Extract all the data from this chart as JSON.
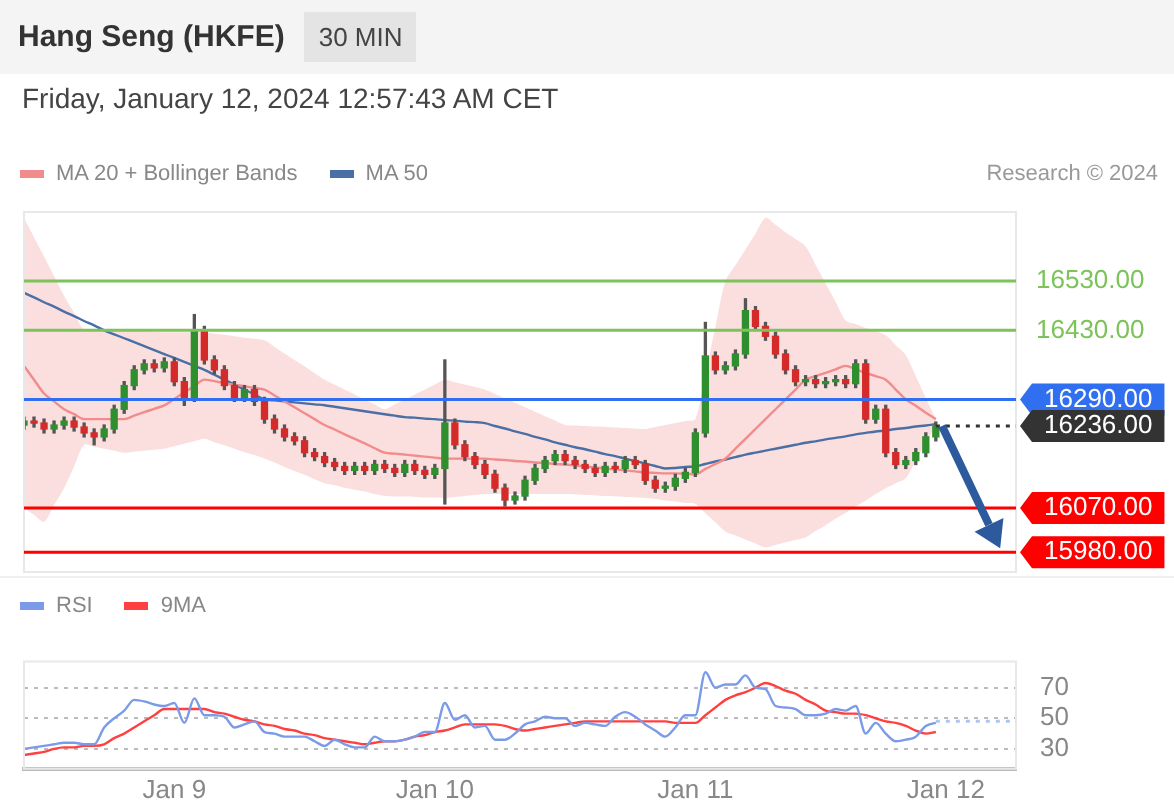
{
  "chart_data": [
    {
      "type": "candlestick",
      "title": "Hang Seng (HKFE)",
      "subtitle": "30 MIN",
      "annotations": [
        "Friday, January 12, 2024 12:57:43 AM CET",
        "Research © 2024"
      ],
      "ohlc": [
        [
          16238,
          16254,
          16230,
          16246
        ],
        [
          16246,
          16254,
          16234,
          16242
        ],
        [
          16242,
          16250,
          16222,
          16230
        ],
        [
          16230,
          16246,
          16222,
          16238
        ],
        [
          16238,
          16254,
          16230,
          16246
        ],
        [
          16246,
          16254,
          16226,
          16234
        ],
        [
          16234,
          16242,
          16214,
          16222
        ],
        [
          16222,
          16230,
          16198,
          16214
        ],
        [
          16214,
          16238,
          16206,
          16230
        ],
        [
          16230,
          16278,
          16222,
          16270
        ],
        [
          16270,
          16326,
          16262,
          16318
        ],
        [
          16318,
          16358,
          16310,
          16350
        ],
        [
          16350,
          16370,
          16342,
          16362
        ],
        [
          16362,
          16370,
          16346,
          16354
        ],
        [
          16354,
          16374,
          16346,
          16366
        ],
        [
          16366,
          16374,
          16318,
          16326
        ],
        [
          16326,
          16334,
          16278,
          16294
        ],
        [
          16294,
          16462,
          16286,
          16430
        ],
        [
          16430,
          16438,
          16362,
          16370
        ],
        [
          16370,
          16378,
          16342,
          16350
        ],
        [
          16350,
          16358,
          16310,
          16318
        ],
        [
          16318,
          16326,
          16286,
          16294
        ],
        [
          16294,
          16318,
          16286,
          16310
        ],
        [
          16310,
          16318,
          16278,
          16286
        ],
        [
          16286,
          16294,
          16242,
          16250
        ],
        [
          16250,
          16258,
          16222,
          16230
        ],
        [
          16230,
          16238,
          16206,
          16214
        ],
        [
          16214,
          16222,
          16198,
          16206
        ],
        [
          16206,
          16214,
          16174,
          16182
        ],
        [
          16182,
          16190,
          16166,
          16174
        ],
        [
          16174,
          16182,
          16154,
          16162
        ],
        [
          16162,
          16170,
          16146,
          16154
        ],
        [
          16154,
          16162,
          16138,
          16146
        ],
        [
          16146,
          16162,
          16138,
          16154
        ],
        [
          16154,
          16162,
          16138,
          16146
        ],
        [
          16146,
          16166,
          16138,
          16158
        ],
        [
          16158,
          16166,
          16142,
          16150
        ],
        [
          16150,
          16158,
          16134,
          16142
        ],
        [
          16142,
          16166,
          16134,
          16158
        ],
        [
          16158,
          16166,
          16138,
          16146
        ],
        [
          16146,
          16154,
          16130,
          16138
        ],
        [
          16138,
          16158,
          16130,
          16150
        ],
        [
          16150,
          16370,
          16078,
          16242
        ],
        [
          16242,
          16250,
          16190,
          16198
        ],
        [
          16198,
          16206,
          16166,
          16174
        ],
        [
          16174,
          16182,
          16150,
          16158
        ],
        [
          16158,
          16166,
          16130,
          16138
        ],
        [
          16138,
          16146,
          16102,
          16110
        ],
        [
          16110,
          16118,
          16074,
          16086
        ],
        [
          16086,
          16102,
          16078,
          16094
        ],
        [
          16094,
          16134,
          16086,
          16126
        ],
        [
          16126,
          16158,
          16118,
          16150
        ],
        [
          16150,
          16174,
          16142,
          16166
        ],
        [
          16166,
          16186,
          16158,
          16178
        ],
        [
          16178,
          16186,
          16158,
          16166
        ],
        [
          16166,
          16174,
          16150,
          16158
        ],
        [
          16158,
          16166,
          16142,
          16150
        ],
        [
          16150,
          16158,
          16134,
          16142
        ],
        [
          16142,
          16162,
          16134,
          16154
        ],
        [
          16154,
          16162,
          16142,
          16150
        ],
        [
          16150,
          16174,
          16142,
          16166
        ],
        [
          16166,
          16174,
          16150,
          16158
        ],
        [
          16158,
          16166,
          16118,
          16126
        ],
        [
          16126,
          16134,
          16102,
          16110
        ],
        [
          16110,
          16122,
          16102,
          16114
        ],
        [
          16114,
          16138,
          16106,
          16130
        ],
        [
          16130,
          16150,
          16122,
          16142
        ],
        [
          16142,
          16230,
          16134,
          16222
        ],
        [
          16222,
          16446,
          16214,
          16378
        ],
        [
          16378,
          16386,
          16342,
          16350
        ],
        [
          16350,
          16366,
          16342,
          16358
        ],
        [
          16358,
          16390,
          16350,
          16382
        ],
        [
          16382,
          16494,
          16374,
          16470
        ],
        [
          16470,
          16478,
          16430,
          16438
        ],
        [
          16438,
          16446,
          16410,
          16418
        ],
        [
          16418,
          16426,
          16374,
          16382
        ],
        [
          16382,
          16390,
          16342,
          16350
        ],
        [
          16350,
          16358,
          16318,
          16326
        ],
        [
          16326,
          16338,
          16318,
          16330
        ],
        [
          16330,
          16338,
          16314,
          16322
        ],
        [
          16322,
          16334,
          16314,
          16326
        ],
        [
          16326,
          16338,
          16318,
          16330
        ],
        [
          16330,
          16338,
          16314,
          16322
        ],
        [
          16322,
          16370,
          16314,
          16362
        ],
        [
          16362,
          16370,
          16242,
          16250
        ],
        [
          16250,
          16278,
          16242,
          16270
        ],
        [
          16270,
          16278,
          16174,
          16182
        ],
        [
          16182,
          16190,
          16150,
          16158
        ],
        [
          16158,
          16174,
          16150,
          16166
        ],
        [
          16166,
          16190,
          16158,
          16182
        ],
        [
          16182,
          16222,
          16174,
          16214
        ],
        [
          16214,
          16244,
          16206,
          16236
        ],
        null,
        null,
        null,
        null,
        null,
        null,
        null,
        null
      ],
      "series": [
        {
          "type": "line",
          "name": "MA 20 + Bollinger Bands",
          "color": "#f28b8b",
          "values": [
            16358,
            16330,
            16302,
            16286,
            16270,
            16260,
            16250,
            16250,
            16250,
            16250,
            16250,
            16257,
            16264,
            16271,
            16278,
            16291,
            16304,
            16317,
            16330,
            16327,
            16323,
            16320,
            16317,
            16313,
            16310,
            16298,
            16286,
            16274,
            16262,
            16250,
            16238,
            16229,
            16219,
            16210,
            16201,
            16191,
            16182,
            16180,
            16178,
            16176,
            16174,
            16172,
            16170,
            16170,
            16170,
            16170,
            16170,
            16168,
            16167,
            16165,
            16164,
            16162,
            16161,
            16159,
            16158,
            16156,
            16154,
            16152,
            16150,
            16148,
            16146,
            16144,
            16142,
            16141,
            16140,
            16140,
            16139,
            16138,
            16149,
            16159,
            16170,
            16190,
            16210,
            16230,
            16250,
            16270,
            16290,
            16310,
            16330,
            16337,
            16344,
            16351,
            16358,
            16351,
            16344,
            16337,
            16330,
            16310,
            16290,
            16277,
            16263,
            16250,
            null,
            null,
            null,
            null,
            null,
            null,
            null,
            null
          ],
          "upper": [
            16658,
            16619,
            16580,
            16540,
            16500,
            16465,
            16430,
            16430,
            16430,
            16430,
            16430,
            16429,
            16428,
            16427,
            16426,
            16426,
            16426,
            16426,
            16426,
            16423,
            16421,
            16418,
            16415,
            16413,
            16410,
            16397,
            16383,
            16370,
            16357,
            16343,
            16330,
            16320,
            16310,
            16300,
            16290,
            16280,
            16270,
            16280,
            16290,
            16300,
            16310,
            16320,
            16330,
            16325,
            16320,
            16315,
            16310,
            16301,
            16292,
            16283,
            16274,
            16265,
            16256,
            16247,
            16238,
            16237,
            16236,
            16235,
            16234,
            16233,
            16232,
            16231,
            16230,
            16234,
            16238,
            16242,
            16246,
            16250,
            16343,
            16437,
            16530,
            16562,
            16594,
            16626,
            16658,
            16644,
            16629,
            16615,
            16600,
            16563,
            16525,
            16488,
            16450,
            16443,
            16435,
            16428,
            16420,
            16400,
            16380,
            16337,
            16293,
            16250,
            null,
            null,
            null,
            null,
            null,
            null,
            null,
            null
          ],
          "lower": [
            16070,
            16056,
            16042,
            16076,
            16110,
            16154,
            16198,
            16194,
            16190,
            16186,
            16182,
            16184,
            16186,
            16188,
            16190,
            16195,
            16200,
            16205,
            16210,
            16203,
            16197,
            16190,
            16183,
            16177,
            16170,
            16162,
            16153,
            16145,
            16137,
            16128,
            16120,
            16116,
            16111,
            16107,
            16103,
            16098,
            16094,
            16093,
            16093,
            16092,
            16091,
            16091,
            16090,
            16092,
            16094,
            16096,
            16098,
            16098,
            16098,
            16098,
            16098,
            16098,
            16098,
            16098,
            16098,
            16097,
            16096,
            16095,
            16094,
            16093,
            16092,
            16091,
            16090,
            16088,
            16085,
            16083,
            16080,
            16078,
            16059,
            16041,
            16022,
            16014,
            16006,
            15998,
            15990,
            15995,
            16000,
            16005,
            16010,
            16023,
            16035,
            16048,
            16060,
            16073,
            16085,
            16098,
            16110,
            16120,
            16130,
            16166,
            16202,
            16238,
            null,
            null,
            null,
            null,
            null,
            null,
            null,
            null
          ]
        },
        {
          "type": "line",
          "name": "MA 50",
          "color": "#4a6fa5",
          "values": [
            16506,
            16497,
            16487,
            16478,
            16468,
            16459,
            16449,
            16440,
            16430,
            16422,
            16414,
            16406,
            16398,
            16390,
            16382,
            16374,
            16366,
            16358,
            16350,
            16340,
            16330,
            16320,
            16310,
            16300,
            16290,
            16288,
            16286,
            16284,
            16282,
            16280,
            16278,
            16275,
            16272,
            16269,
            16266,
            16263,
            16260,
            16257,
            16254,
            16253,
            16251,
            16250,
            16248,
            16247,
            16245,
            16244,
            16242,
            16236,
            16231,
            16225,
            16220,
            16214,
            16209,
            16203,
            16198,
            16193,
            16189,
            16184,
            16179,
            16175,
            16170,
            16165,
            16160,
            16155,
            16150,
            16151,
            16153,
            16154,
            16159,
            16164,
            16168,
            16173,
            16178,
            16182,
            16186,
            16190,
            16194,
            16198,
            16202,
            16205,
            16209,
            16212,
            16215,
            16219,
            16222,
            16225,
            16227,
            16230,
            16232,
            16235,
            16237,
            16240,
            null,
            null,
            null,
            null,
            null,
            null,
            null,
            null
          ]
        }
      ],
      "ylim": [
        15940,
        16670
      ],
      "tick_labels": false,
      "grid": false,
      "legend": "top left",
      "ref_lines": [
        {
          "axis": "y",
          "value": 16530,
          "label": "16530.00",
          "color": "#7cc35a"
        },
        {
          "axis": "y",
          "value": 16430,
          "label": "16430.00",
          "color": "#7cc35a"
        },
        {
          "axis": "y",
          "value": 16290,
          "label": "16290.00",
          "color": "#3070f0"
        },
        {
          "axis": "y",
          "value": 16236,
          "label": "16236.00",
          "color": "#333333",
          "line_style": "dotted"
        },
        {
          "axis": "y",
          "value": 16070,
          "label": "16070.00",
          "color": "#ff0000"
        },
        {
          "axis": "y",
          "value": 15980,
          "label": "15980.00",
          "color": "#ff0000"
        }
      ]
    },
    {
      "type": "line",
      "legend": "top left",
      "grid": "y",
      "categories": [
        null,
        null,
        null,
        null,
        null,
        null,
        null,
        null,
        null,
        null,
        null,
        null,
        null,
        null,
        null,
        "Jan 9",
        null,
        null,
        null,
        null,
        null,
        null,
        null,
        null,
        null,
        null,
        null,
        null,
        null,
        null,
        null,
        null,
        null,
        null,
        null,
        null,
        null,
        null,
        null,
        null,
        null,
        "Jan 10",
        null,
        null,
        null,
        null,
        null,
        null,
        null,
        null,
        null,
        null,
        null,
        null,
        null,
        null,
        null,
        null,
        null,
        null,
        null,
        null,
        null,
        null,
        null,
        null,
        null,
        "Jan 11",
        null,
        null,
        null,
        null,
        null,
        null,
        null,
        null,
        null,
        null,
        null,
        null,
        null,
        null,
        null,
        null,
        null,
        null,
        null,
        null,
        null,
        null,
        null,
        null,
        "Jan 12",
        null,
        null,
        null,
        null,
        null,
        null,
        null
      ],
      "series": [
        {
          "name": "RSI",
          "color": "#7b9be8",
          "values": [
            30,
            31,
            32,
            33,
            34,
            34,
            33,
            33,
            44,
            50,
            55,
            62,
            61,
            59,
            58,
            60,
            47,
            63,
            52,
            52,
            51,
            44,
            46,
            48,
            41,
            40,
            38,
            38,
            38,
            35,
            32,
            36,
            33,
            31,
            31,
            38,
            35,
            35,
            36,
            38,
            41,
            41,
            60,
            49,
            52,
            44,
            45,
            36,
            36,
            40,
            46,
            48,
            51,
            50,
            50,
            45,
            47,
            46,
            45,
            51,
            54,
            51,
            46,
            42,
            38,
            44,
            52,
            52,
            80,
            70,
            72,
            72,
            78,
            70,
            69,
            58,
            57,
            56,
            52,
            52,
            53,
            56,
            55,
            58,
            40,
            47,
            40,
            35,
            36,
            38,
            45,
            47,
            null,
            null,
            null,
            null,
            null,
            null,
            null,
            null
          ]
        },
        {
          "name": "9MA",
          "color": "#ff4040",
          "values": [
            26,
            27,
            28,
            30,
            31,
            31,
            32,
            32,
            33,
            37,
            40,
            44,
            48,
            52,
            56,
            56,
            56,
            56,
            56,
            54,
            53,
            51,
            49,
            48,
            46,
            45,
            43,
            42,
            40,
            39,
            37,
            36,
            35,
            34,
            33,
            34,
            35,
            35,
            36,
            38,
            39,
            41,
            42,
            44,
            46,
            46,
            46,
            46,
            45,
            43,
            42,
            43,
            44,
            45,
            46,
            47,
            48,
            48,
            48,
            48,
            48,
            48,
            48,
            48,
            48,
            47,
            47,
            47,
            52,
            57,
            62,
            65,
            67,
            70,
            73,
            71,
            68,
            66,
            62,
            59,
            55,
            54,
            53,
            53,
            52,
            50,
            48,
            47,
            45,
            42,
            40,
            41,
            null,
            null,
            null,
            null,
            null,
            null,
            null,
            null
          ]
        }
      ],
      "ylim": [
        17,
        87
      ],
      "yticks": [
        30,
        50,
        70
      ],
      "ref_lines": [
        {
          "axis": "y",
          "value": 48,
          "color": "#b0c4f0",
          "line_style": "dotted"
        }
      ]
    }
  ]
}
